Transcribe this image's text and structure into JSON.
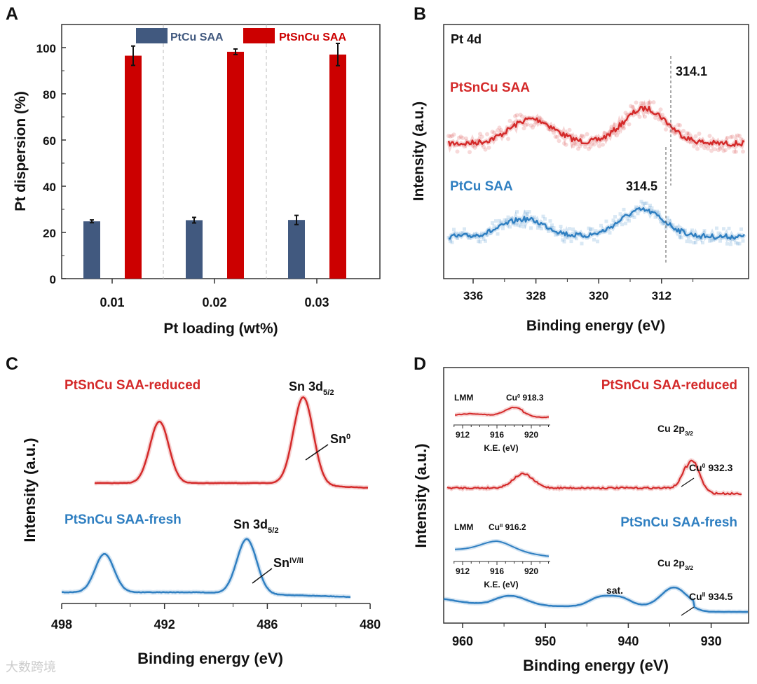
{
  "colors": {
    "red": "#cc0000",
    "navy": "#41597f",
    "lred": "#d42a2a",
    "blue": "#2f7fc1"
  },
  "watermark": "大数跨境",
  "chart_data": [
    {
      "panel": "A",
      "type": "bar",
      "title": "",
      "xlabel": "Pt loading (wt%)",
      "ylabel": "Pt dispersion (%)",
      "categories": [
        "0.01",
        "0.02",
        "0.03"
      ],
      "ylim": [
        0,
        110
      ],
      "yticks": [
        "0",
        "20",
        "40",
        "60",
        "80",
        "100"
      ],
      "legend": "top-right",
      "series": [
        {
          "name": "PtCu SAA",
          "values": [
            24.8,
            25.3,
            25.4
          ],
          "errors": [
            0.6,
            1.2,
            2.0
          ]
        },
        {
          "name": "PtSnCu SAA",
          "values": [
            96.5,
            98.2,
            97.0
          ],
          "errors": [
            4.2,
            1.2,
            4.8
          ]
        }
      ]
    },
    {
      "panel": "B",
      "type": "line",
      "title": "Pt 4d",
      "xlabel": "Binding energy (eV)",
      "ylabel": "Intensity (a.u.)",
      "xlim": [
        339.7,
        300.9
      ],
      "xticks": [
        "336",
        "328",
        "320",
        "312"
      ],
      "series": [
        {
          "name": "PtSnCu SAA",
          "peaks": [
            328.5,
            314.1
          ],
          "annotation": "314.1"
        },
        {
          "name": "PtCu SAA",
          "peaks": [
            329.5,
            314.5
          ],
          "annotation": "314.5"
        }
      ]
    },
    {
      "panel": "C",
      "type": "line",
      "title": "",
      "xlabel": "Binding energy (eV)",
      "ylabel": "Intensity (a.u.)",
      "xlim": [
        498,
        480
      ],
      "xticks": [
        "498",
        "492",
        "486",
        "480"
      ],
      "series": [
        {
          "name": "PtSnCu SAA-reduced",
          "peaks": [
            492.3,
            483.9
          ],
          "peak_label": "Sn 3d",
          "peak_sub": "5/2",
          "state": "Sn",
          "state_sup": "0"
        },
        {
          "name": "PtSnCu SAA-fresh",
          "peaks": [
            495.5,
            487.2
          ],
          "peak_label": "Sn 3d",
          "peak_sub": "5/2",
          "state": "Sn",
          "state_sup": "IV/II"
        }
      ]
    },
    {
      "panel": "D",
      "type": "line",
      "title": "",
      "xlabel": "Binding energy (eV)",
      "ylabel": "Intensity (a.u.)",
      "xlim": [
        962.3,
        925.5
      ],
      "xticks": [
        "960",
        "950",
        "940",
        "930"
      ],
      "series": [
        {
          "name": "PtSnCu SAA-reduced",
          "peaks": [
            952.7,
            932.3
          ],
          "peak_label": "Cu 2p",
          "peak_sub": "3/2",
          "state": "Cu",
          "state_sup": "0",
          "state_value": "932.3",
          "inset": {
            "label": "LMM",
            "state": "Cu",
            "state_sup": "0",
            "value": "918.3",
            "xlabel": "K.E. (eV)",
            "xticks": [
              "912",
              "916",
              "920"
            ]
          }
        },
        {
          "name": "PtSnCu SAA-fresh",
          "peaks": [
            954.3,
            943.5,
            941,
            934.5
          ],
          "peak_label": "Cu 2p",
          "peak_sub": "3/2",
          "state": "Cu",
          "state_sup": "II",
          "state_value": "934.5",
          "sat_label": "sat.",
          "inset": {
            "label": "LMM",
            "state": "Cu",
            "state_sup": "II",
            "value": "916.2",
            "xlabel": "K.E. (eV)",
            "xticks": [
              "912",
              "916",
              "920"
            ]
          }
        }
      ]
    }
  ],
  "panel_labels": [
    "A",
    "B",
    "C",
    "D"
  ]
}
